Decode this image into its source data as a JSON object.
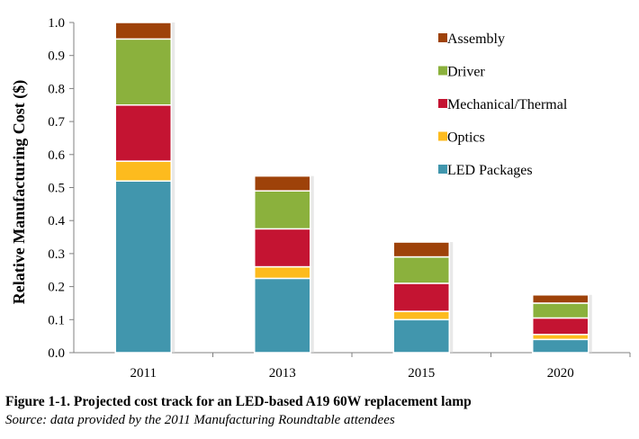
{
  "chart_data": {
    "type": "bar",
    "stacked": true,
    "categories": [
      "2011",
      "2013",
      "2015",
      "2020"
    ],
    "ylabel": "Relative Manufacturing Cost ($)",
    "xlabel": "",
    "ylim": [
      0,
      1.0
    ],
    "yticks": [
      "0.0",
      "0.1",
      "0.2",
      "0.3",
      "0.4",
      "0.5",
      "0.6",
      "0.7",
      "0.8",
      "0.9",
      "1.0"
    ],
    "grid": false,
    "legend_position": "top-right",
    "series": [
      {
        "name": "LED Packages",
        "color": "#4196AD",
        "values": [
          0.52,
          0.225,
          0.1,
          0.04
        ]
      },
      {
        "name": "Optics",
        "color": "#FDBB1E",
        "values": [
          0.06,
          0.035,
          0.025,
          0.015
        ]
      },
      {
        "name": "Mechanical/Thermal",
        "color": "#C41432",
        "values": [
          0.17,
          0.115,
          0.085,
          0.05
        ]
      },
      {
        "name": "Driver",
        "color": "#8BB13D",
        "values": [
          0.2,
          0.115,
          0.08,
          0.045
        ]
      },
      {
        "name": "Assembly",
        "color": "#9E4209",
        "values": [
          0.05,
          0.045,
          0.045,
          0.025
        ]
      }
    ]
  },
  "caption": {
    "title": "Figure 1-1. Projected cost track for an LED-based A19 60W replacement lamp",
    "source": "Source: data provided by the 2011 Manufacturing Roundtable attendees"
  }
}
